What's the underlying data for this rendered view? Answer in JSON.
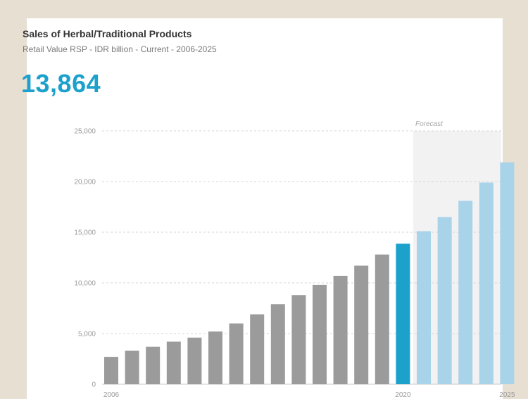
{
  "title": "Sales of Herbal/Traditional Products",
  "subtitle": "Retail Value RSP - IDR billion - Current - 2006-2025",
  "headline_value": "13,864",
  "forecast_label": "Forecast",
  "colors": {
    "historic": "#9b9b9b",
    "current": "#1ba1cc",
    "forecast": "#a9d3e9",
    "forecast_band": "#f2f2f2",
    "headline": "#1ba1cc"
  },
  "chart_data": {
    "type": "bar",
    "title": "Sales of Herbal/Traditional Products",
    "subtitle": "Retail Value RSP - IDR billion - Current - 2006-2025",
    "ylim": [
      0,
      25000
    ],
    "y_ticks": [
      "0",
      "5,000",
      "10,000",
      "15,000",
      "20,000",
      "25,000"
    ],
    "y_tick_values": [
      0,
      5000,
      10000,
      15000,
      20000,
      25000
    ],
    "x_tick_labels": [
      {
        "index": 0,
        "label": "2006"
      },
      {
        "index": 14,
        "label": "2020"
      },
      {
        "index": 19,
        "label": "2025"
      }
    ],
    "grid": "horizontal dashed",
    "categories": [
      "2006",
      "2007",
      "2008",
      "2009",
      "2010",
      "2011",
      "2012",
      "2013",
      "2014",
      "2015",
      "2016",
      "2017",
      "2018",
      "2019",
      "2020",
      "2021",
      "2022",
      "2023",
      "2024",
      "2025"
    ],
    "values": [
      2700,
      3300,
      3700,
      4200,
      4600,
      5200,
      6000,
      6900,
      7900,
      8800,
      9800,
      10700,
      11700,
      12800,
      13864,
      15100,
      16500,
      18100,
      19900,
      21900
    ],
    "current_index": 14,
    "forecast_start_index": 15
  }
}
